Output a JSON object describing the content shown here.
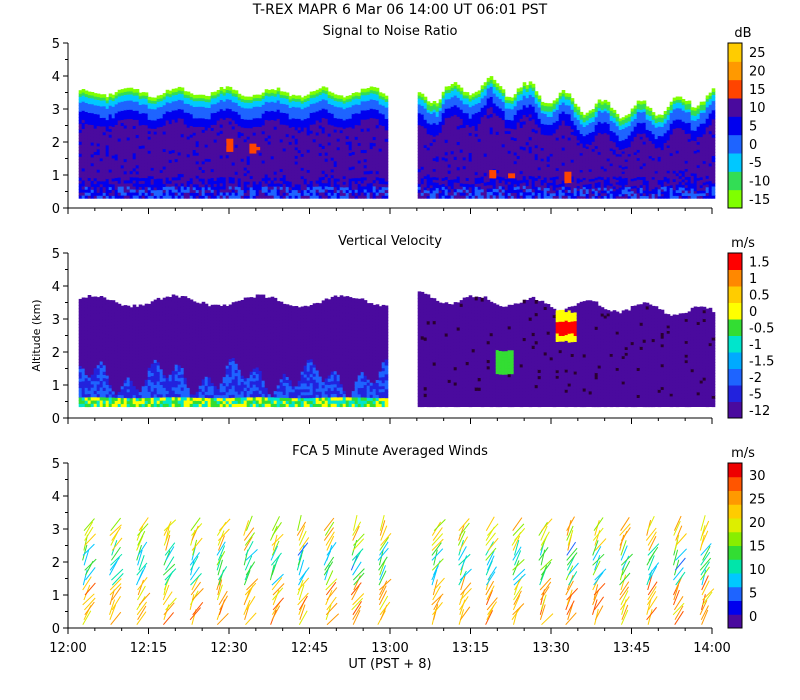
{
  "header": {
    "title": "T-REX   MAPR   6 Mar 06   14:00 UT   06:01   PST"
  },
  "x_axis": {
    "label": "UT  (PST + 8)",
    "ticks": [
      "12:00",
      "12:15",
      "12:30",
      "12:45",
      "13:00",
      "13:15",
      "13:30",
      "13:45",
      "14:00"
    ]
  },
  "colors": {
    "snr": [
      "#7fff00",
      "#33dd55",
      "#00c8ff",
      "#1e64ff",
      "#0000ee",
      "#4a0a9e",
      "#4a0a9e",
      "#ff4400",
      "#ff9900",
      "#ffcc00"
    ],
    "vel": [
      "#2a0030",
      "#4a0a9e",
      "#2222dd",
      "#1e64ff",
      "#00aaff",
      "#00e5cc",
      "#33dd33",
      "#ffff00",
      "#ffcc00",
      "#ff8800",
      "#ff0000"
    ],
    "wind": [
      "#4a0a9e",
      "#0000ee",
      "#1e64ff",
      "#00c8ff",
      "#00e5aa",
      "#33dd33",
      "#88ee00",
      "#ddee00",
      "#ffcc00",
      "#ff9900",
      "#ff5500",
      "#ee0000"
    ]
  },
  "chart_data": [
    {
      "type": "heatmap",
      "title": "Signal to Noise Ratio",
      "ylabel": "",
      "ylim": [
        0,
        5
      ],
      "yticks": [
        "0",
        "1",
        "2",
        "3",
        "4",
        "5"
      ],
      "xlim": [
        "12:00",
        "14:00"
      ],
      "data_gap": [
        "12:59",
        "13:05"
      ],
      "colorbar": {
        "unit": "dB",
        "labels": [
          "25",
          "20",
          "15",
          "10",
          "5",
          "0",
          "-5",
          "-10",
          "-15"
        ],
        "range": [
          -17.5,
          27.5
        ]
      }
    },
    {
      "type": "heatmap",
      "title": "Vertical Velocity",
      "ylabel": "Altitude (km)",
      "ylim": [
        0,
        5
      ],
      "yticks": [
        "0",
        "1",
        "2",
        "3",
        "4",
        "5"
      ],
      "xlim": [
        "12:00",
        "14:00"
      ],
      "data_gap": [
        "12:59",
        "13:05"
      ],
      "colorbar": {
        "unit": "m/s",
        "labels": [
          "1.5",
          "1",
          "0.5",
          "0",
          "-0.5",
          "-1",
          "-1.5",
          "-2",
          "-5",
          "-12"
        ]
      }
    },
    {
      "type": "scatter",
      "title": "FCA 5 Minute Averaged Winds",
      "ylabel": "",
      "ylim": [
        0,
        5
      ],
      "yticks": [
        "0",
        "1",
        "2",
        "3",
        "4",
        "5"
      ],
      "xlim": [
        "12:00",
        "14:00"
      ],
      "colorbar": {
        "unit": "m/s",
        "labels": [
          "30",
          "25",
          "20",
          "15",
          "10",
          "5",
          "0"
        ],
        "range": [
          -2.5,
          32.5
        ]
      }
    }
  ]
}
